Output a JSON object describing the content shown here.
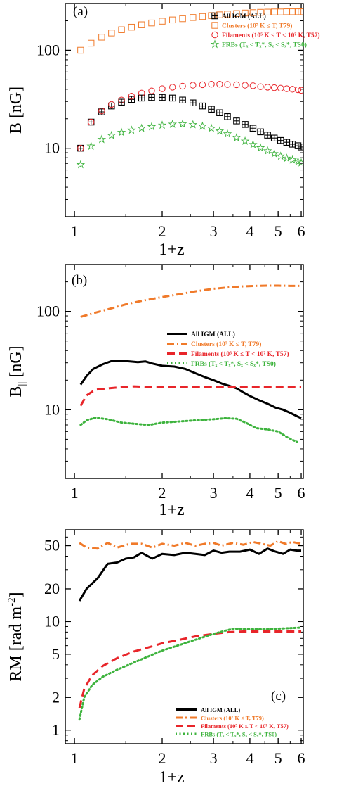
{
  "chart_data": [
    {
      "type": "scatter",
      "panel_label": "(a)",
      "xlabel": "1+z",
      "ylabel": "B  [nG]",
      "xscale": "log",
      "yscale": "log",
      "xlim": [
        0.93,
        6.1
      ],
      "ylim": [
        2,
        300
      ],
      "xticks": [
        1,
        2,
        3,
        4,
        5,
        6
      ],
      "yticks": [
        10,
        100
      ],
      "legend_position": "top-right",
      "series": [
        {
          "name": "All IGM (ALL)",
          "marker": "crossed-square",
          "color": "#000000",
          "x": [
            1.05,
            1.14,
            1.24,
            1.34,
            1.45,
            1.57,
            1.7,
            1.84,
            2.0,
            2.17,
            2.35,
            2.55,
            2.75,
            2.95,
            3.15,
            3.35,
            3.6,
            3.85,
            4.1,
            4.35,
            4.6,
            4.85,
            5.1,
            5.35,
            5.6,
            5.85,
            6.0
          ],
          "y": [
            10,
            18.5,
            23.5,
            27,
            29.5,
            31.5,
            32.5,
            33,
            33,
            32.5,
            31,
            29,
            27,
            25,
            23,
            21,
            19,
            17.5,
            16,
            14.7,
            13.6,
            12.7,
            12,
            11.5,
            11,
            10.6,
            10.3
          ]
        },
        {
          "name": "Clusters (10⁷ K ≤ T, T79)",
          "marker": "open-square",
          "color": "#f07a2a",
          "x": [
            1.05,
            1.14,
            1.24,
            1.34,
            1.45,
            1.57,
            1.7,
            1.84,
            2.0,
            2.17,
            2.35,
            2.55,
            2.75,
            2.95,
            3.15,
            3.35,
            3.6,
            3.85,
            4.1,
            4.35,
            4.6,
            4.85,
            5.1,
            5.35,
            5.6,
            5.85,
            6.0
          ],
          "y": [
            100,
            118,
            136,
            150,
            162,
            172,
            182,
            190,
            198,
            204,
            210,
            216,
            221,
            226,
            230,
            234,
            237,
            240,
            242,
            244,
            245,
            246,
            246,
            247,
            247,
            247,
            247
          ]
        },
        {
          "name": "Filaments (10⁵ K ≤ T < 10⁷ K, T57)",
          "marker": "open-circle",
          "color": "#e8252a",
          "x": [
            1.05,
            1.14,
            1.24,
            1.34,
            1.45,
            1.57,
            1.7,
            1.84,
            2.0,
            2.17,
            2.35,
            2.55,
            2.75,
            2.95,
            3.15,
            3.35,
            3.6,
            3.85,
            4.1,
            4.35,
            4.6,
            4.85,
            5.1,
            5.35,
            5.6,
            5.85,
            6.0
          ],
          "y": [
            10,
            18.5,
            24,
            28,
            31,
            34,
            36.5,
            38.5,
            40.5,
            42,
            43,
            44,
            44.5,
            45,
            45,
            44.8,
            44.5,
            44,
            43.5,
            42.5,
            42,
            41.5,
            41,
            40.5,
            40,
            39.5,
            39
          ]
        },
        {
          "name": "FRBs (Tₓ < Tₓ*, Sₓ < Sₓ*, TS0)",
          "marker": "open-star",
          "color": "#3db33d",
          "x": [
            1.05,
            1.14,
            1.24,
            1.34,
            1.45,
            1.57,
            1.7,
            1.84,
            2.0,
            2.17,
            2.35,
            2.55,
            2.75,
            2.95,
            3.15,
            3.35,
            3.6,
            3.85,
            4.1,
            4.35,
            4.6,
            4.85,
            5.1,
            5.35,
            5.6,
            5.85,
            6.0
          ],
          "y": [
            6.8,
            10.5,
            12.3,
            13.5,
            14.5,
            15.3,
            16,
            16.6,
            17.2,
            17.6,
            17.7,
            17.4,
            16.8,
            16,
            15,
            14,
            12.8,
            11.8,
            10.9,
            10.1,
            9.4,
            8.8,
            8.3,
            7.9,
            7.6,
            7.3,
            7.1
          ]
        }
      ]
    },
    {
      "type": "line",
      "panel_label": "(b)",
      "xlabel": "1+z",
      "ylabel": "B",
      "ylabel_sub": "||",
      "ylabel_unit": " [nG]",
      "xscale": "log",
      "yscale": "log",
      "xlim": [
        0.93,
        6.1
      ],
      "ylim": [
        2,
        300
      ],
      "xticks": [
        1,
        2,
        3,
        4,
        5,
        6
      ],
      "yticks": [
        10,
        100
      ],
      "legend_position": "center-right",
      "series": [
        {
          "name": "All IGM (ALL)",
          "style": "solid",
          "color": "#000000",
          "x": [
            1.05,
            1.1,
            1.16,
            1.25,
            1.35,
            1.45,
            1.55,
            1.65,
            1.75,
            1.85,
            2.0,
            2.2,
            2.4,
            2.6,
            2.8,
            3.0,
            3.2,
            3.4,
            3.6,
            3.8,
            4.0,
            4.3,
            4.6,
            4.9,
            5.2,
            5.5,
            5.8,
            6.0
          ],
          "y": [
            18,
            22,
            26,
            29,
            31.5,
            31.5,
            31,
            30.5,
            31,
            29.5,
            28,
            27.5,
            26,
            23.5,
            21.5,
            20,
            18.5,
            17.5,
            16.5,
            15,
            13.8,
            12.5,
            11.5,
            10.5,
            10,
            9.3,
            8.6,
            8.2
          ]
        },
        {
          "name": "Clusters (10⁷ K ≤ T, T79)",
          "style": "dashdot",
          "color": "#f07a2a",
          "x": [
            1.05,
            1.15,
            1.3,
            1.5,
            1.7,
            2.0,
            2.3,
            2.6,
            3.0,
            3.4,
            3.8,
            4.2,
            4.6,
            5.0,
            5.5,
            6.0
          ],
          "y": [
            88,
            95,
            105,
            118,
            128,
            140,
            150,
            160,
            170,
            176,
            180,
            182,
            183,
            183,
            182,
            182
          ]
        },
        {
          "name": "Filaments (10⁵ K ≤ T < 10⁷ K, T57)",
          "style": "dashed",
          "color": "#e8252a",
          "x": [
            1.05,
            1.1,
            1.18,
            1.3,
            1.45,
            1.6,
            1.8,
            2.0,
            2.3,
            2.6,
            3.0,
            3.4,
            3.8,
            4.2,
            4.6,
            5.0,
            5.5,
            6.0
          ],
          "y": [
            11,
            14,
            16,
            16.5,
            17,
            17.3,
            17,
            17,
            17,
            17,
            17,
            17,
            17,
            17,
            17,
            17,
            17,
            17
          ]
        },
        {
          "name": "FRBs (Tₓ < Tₓ*, Sₓ < Sₓ*, TS0)",
          "style": "dotted",
          "color": "#3db33d",
          "x": [
            1.05,
            1.1,
            1.18,
            1.3,
            1.45,
            1.6,
            1.8,
            2.0,
            2.3,
            2.6,
            3.0,
            3.3,
            3.6,
            3.9,
            4.2,
            4.6,
            5.0,
            5.4,
            5.8
          ],
          "y": [
            7,
            7.8,
            8.3,
            8,
            7.4,
            7.2,
            7,
            7.4,
            7.6,
            7.8,
            8,
            8.2,
            8.1,
            7.3,
            6.5,
            6.3,
            6,
            5.2,
            4.7
          ]
        }
      ]
    },
    {
      "type": "line",
      "panel_label": "(c)",
      "xlabel": "1+z",
      "ylabel": "RM [rad m",
      "ylabel_sup": "-2",
      "ylabel_unit": "]",
      "xscale": "log",
      "yscale": "log",
      "xlim": [
        0.93,
        6.1
      ],
      "ylim": [
        0.75,
        70
      ],
      "xticks": [
        1,
        2,
        3,
        4,
        5,
        6
      ],
      "yticks": [
        1,
        2,
        5,
        10,
        20,
        50
      ],
      "legend_position": "bottom-right",
      "series": [
        {
          "name": "All IGM (ALL)",
          "style": "solid",
          "color": "#000000",
          "x": [
            1.04,
            1.1,
            1.2,
            1.3,
            1.4,
            1.5,
            1.6,
            1.7,
            1.85,
            2.0,
            2.2,
            2.4,
            2.6,
            2.8,
            3.0,
            3.2,
            3.4,
            3.7,
            4.0,
            4.3,
            4.6,
            4.9,
            5.2,
            5.5,
            5.8,
            6.0
          ],
          "y": [
            15.5,
            20,
            25,
            34,
            35,
            38,
            39,
            43,
            38,
            42,
            41,
            43,
            42,
            41,
            45,
            43,
            44,
            44,
            46,
            42,
            47,
            44,
            42,
            46,
            45,
            45
          ]
        },
        {
          "name": "Clusters (10⁷ K ≤ T, T79)",
          "style": "dashdot",
          "color": "#f07a2a",
          "x": [
            1.04,
            1.1,
            1.2,
            1.3,
            1.4,
            1.55,
            1.7,
            1.85,
            2.0,
            2.2,
            2.4,
            2.6,
            2.8,
            3.0,
            3.2,
            3.5,
            3.8,
            4.1,
            4.4,
            4.7,
            5.0,
            5.3,
            5.6,
            6.0
          ],
          "y": [
            53,
            48,
            47,
            53,
            48,
            52,
            52,
            48,
            52,
            50,
            53,
            50,
            52,
            53,
            50,
            53,
            51,
            54,
            52,
            50,
            55,
            52,
            54,
            52
          ]
        },
        {
          "name": "Filaments (10⁵ K ≤ T < 10⁷ K, T57)",
          "style": "dashed",
          "color": "#e8252a",
          "x": [
            1.04,
            1.08,
            1.15,
            1.25,
            1.4,
            1.6,
            1.8,
            2.0,
            2.3,
            2.6,
            3.0,
            3.4,
            3.8,
            4.3,
            4.8,
            5.3,
            6.0
          ],
          "y": [
            1.6,
            2.4,
            3.2,
            3.9,
            4.6,
            5.3,
            5.8,
            6.3,
            6.8,
            7.3,
            7.7,
            8,
            8.1,
            8.1,
            8.1,
            8.1,
            8.1
          ]
        },
        {
          "name": "FRBs (Tₓ < Tₓ*, Sₓ < Sₓ*, TS0)",
          "style": "dotted",
          "color": "#3db33d",
          "x": [
            1.04,
            1.08,
            1.15,
            1.25,
            1.4,
            1.6,
            1.8,
            2.0,
            2.3,
            2.6,
            3.0,
            3.5,
            4.0,
            4.5,
            5.0,
            5.5,
            6.0
          ],
          "y": [
            1.25,
            2,
            2.6,
            3.1,
            3.6,
            4.2,
            4.8,
            5.4,
            6.1,
            6.8,
            7.7,
            8.6,
            8.5,
            8.5,
            8.6,
            8.7,
            8.8
          ]
        }
      ]
    }
  ]
}
